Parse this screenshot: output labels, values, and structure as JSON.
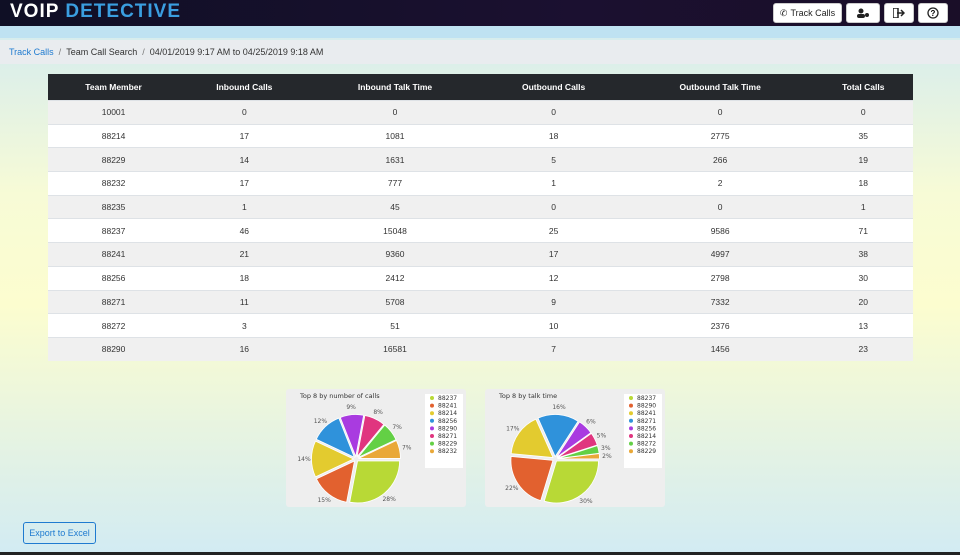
{
  "header": {
    "logo_left": "VOIP",
    "logo_right": "DETECTIVE",
    "track_button": "Track Calls"
  },
  "breadcrumb": {
    "link": "Track Calls",
    "page": "Team Call Search",
    "range": "04/01/2019 9:17 AM to 04/25/2019 9:18 AM"
  },
  "table": {
    "columns": [
      "Team Member",
      "Inbound Calls",
      "Inbound Talk Time",
      "Outbound Calls",
      "Outbound Talk Time",
      "Total Calls"
    ],
    "rows": [
      [
        10001,
        0,
        0,
        0,
        0,
        0
      ],
      [
        88214,
        17,
        1081,
        18,
        2775,
        35
      ],
      [
        88229,
        14,
        1631,
        5,
        266,
        19
      ],
      [
        88232,
        17,
        777,
        1,
        2,
        18
      ],
      [
        88235,
        1,
        45,
        0,
        0,
        1
      ],
      [
        88237,
        46,
        15048,
        25,
        9586,
        71
      ],
      [
        88241,
        21,
        9360,
        17,
        4997,
        38
      ],
      [
        88256,
        18,
        2412,
        12,
        2798,
        30
      ],
      [
        88271,
        11,
        5708,
        9,
        7332,
        20
      ],
      [
        88272,
        3,
        51,
        10,
        2376,
        13
      ],
      [
        88290,
        16,
        16581,
        7,
        1456,
        23
      ]
    ]
  },
  "chart_data": [
    {
      "type": "pie",
      "title": "Top 8 by number of calls",
      "categories": [
        "88237",
        "88241",
        "88214",
        "88256",
        "88290",
        "88271",
        "88229",
        "88232"
      ],
      "values": [
        28,
        15,
        14,
        12,
        9,
        8,
        7,
        7
      ],
      "value_labels": [
        "28%",
        "15%",
        "14%",
        "12%",
        "9%",
        "8%",
        "7%",
        "7%"
      ],
      "colors": [
        "#b8d936",
        "#e2612f",
        "#e3cb2f",
        "#2f92db",
        "#a93be0",
        "#e0357f",
        "#63d045",
        "#e9a838"
      ]
    },
    {
      "type": "pie",
      "title": "Top 8 by talk time",
      "categories": [
        "88237",
        "88290",
        "88241",
        "88271",
        "88256",
        "88214",
        "88272",
        "88229"
      ],
      "values": [
        30,
        22,
        17,
        16,
        6,
        5,
        3,
        2
      ],
      "value_labels": [
        "30%",
        "22%",
        "17%",
        "16%",
        "6%",
        "5%",
        "3%",
        "2%"
      ],
      "colors": [
        "#b8d936",
        "#e2612f",
        "#e3cb2f",
        "#2f92db",
        "#a93be0",
        "#e0357f",
        "#63d045",
        "#e9a838"
      ]
    }
  ],
  "footer": {
    "export_button": "Export to Excel"
  }
}
